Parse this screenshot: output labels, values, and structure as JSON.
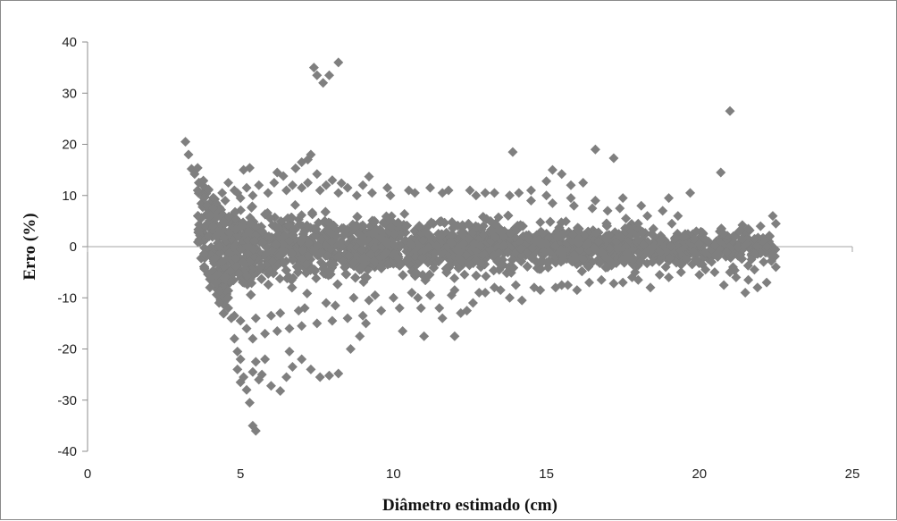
{
  "chart_data": {
    "type": "scatter",
    "title": "",
    "xlabel": "Diâmetro estimado (cm)",
    "ylabel": "Erro (%)",
    "xlim": [
      0,
      25
    ],
    "ylim": [
      -40,
      40
    ],
    "x_ticks": [
      0,
      5,
      10,
      15,
      20,
      25
    ],
    "y_ticks": [
      40,
      30,
      20,
      10,
      0,
      -10,
      -20,
      -30,
      -40
    ],
    "grid": false,
    "legend": "none",
    "marker": "diamond",
    "colors": {
      "marker": "#7f7f7f",
      "axis": "#8c8c8c",
      "zero_line": "#a6a6a6"
    },
    "series": [
      {
        "values": [
          [
            3.2,
            20.5
          ],
          [
            3.3,
            18.0
          ],
          [
            3.4,
            15.2
          ],
          [
            3.5,
            14.2
          ],
          [
            3.6,
            15.4
          ],
          [
            3.7,
            12.5
          ],
          [
            3.6,
            11.0
          ],
          [
            3.8,
            9.5
          ],
          [
            3.9,
            8.0
          ],
          [
            4.0,
            6.0
          ],
          [
            4.1,
            4.0
          ],
          [
            4.2,
            2.0
          ],
          [
            4.3,
            0.0
          ],
          [
            4.4,
            -3.0
          ],
          [
            4.5,
            -6.0
          ],
          [
            4.6,
            -10.0
          ],
          [
            4.7,
            -14.0
          ],
          [
            4.8,
            -18.0
          ],
          [
            4.9,
            -20.5
          ],
          [
            4.6,
            12.5
          ],
          [
            4.9,
            10.5
          ],
          [
            5.1,
            15.0
          ],
          [
            5.3,
            15.4
          ],
          [
            5.0,
            -22.0
          ],
          [
            4.9,
            -24.0
          ],
          [
            5.1,
            -25.5
          ],
          [
            5.0,
            -26.5
          ],
          [
            5.2,
            -28.0
          ],
          [
            5.5,
            -22.5
          ],
          [
            5.4,
            -24.5
          ],
          [
            5.6,
            -26.0
          ],
          [
            5.7,
            -25.0
          ],
          [
            6.0,
            -27.2
          ],
          [
            6.3,
            -28.2
          ],
          [
            6.5,
            -25.5
          ],
          [
            6.7,
            -23.5
          ],
          [
            5.8,
            -22.0
          ],
          [
            5.3,
            -30.5
          ],
          [
            5.4,
            -35.0
          ],
          [
            5.5,
            -36.0
          ],
          [
            6.6,
            -20.5
          ],
          [
            7.0,
            -22.0
          ],
          [
            7.3,
            -24.0
          ],
          [
            7.6,
            -25.5
          ],
          [
            7.9,
            -25.2
          ],
          [
            8.2,
            -24.8
          ],
          [
            8.6,
            -20.0
          ],
          [
            8.9,
            -17.5
          ],
          [
            9.1,
            -15.0
          ],
          [
            7.4,
            35.0
          ],
          [
            7.5,
            33.5
          ],
          [
            7.7,
            32.0
          ],
          [
            7.9,
            33.5
          ],
          [
            8.2,
            36.0
          ],
          [
            6.2,
            14.5
          ],
          [
            6.4,
            13.8
          ],
          [
            6.8,
            15.3
          ],
          [
            7.0,
            16.5
          ],
          [
            7.2,
            17.0
          ],
          [
            7.3,
            18.0
          ],
          [
            7.5,
            14.2
          ],
          [
            8.0,
            13.0
          ],
          [
            8.3,
            12.4
          ],
          [
            9.2,
            13.7
          ],
          [
            11.0,
            -17.5
          ],
          [
            10.3,
            -16.5
          ],
          [
            12.0,
            -17.5
          ],
          [
            12.4,
            -12.5
          ],
          [
            11.6,
            -14.0
          ],
          [
            13.9,
            18.5
          ],
          [
            16.6,
            19.0
          ],
          [
            17.2,
            17.3
          ],
          [
            15.2,
            15.0
          ],
          [
            15.5,
            14.2
          ],
          [
            15.0,
            12.8
          ],
          [
            15.8,
            12.0
          ],
          [
            14.5,
            11.0
          ],
          [
            16.2,
            12.5
          ],
          [
            17.5,
            9.5
          ],
          [
            18.1,
            8.0
          ],
          [
            19.0,
            9.5
          ],
          [
            19.7,
            10.5
          ],
          [
            18.8,
            7.0
          ],
          [
            19.3,
            6.0
          ],
          [
            19.5,
            2.0
          ],
          [
            19.8,
            -1.0
          ],
          [
            20.1,
            -3.5
          ],
          [
            20.5,
            -5.0
          ],
          [
            20.8,
            -7.5
          ],
          [
            20.7,
            14.5
          ],
          [
            21.0,
            26.5
          ],
          [
            21.3,
            3.0
          ],
          [
            21.5,
            0.5
          ],
          [
            21.7,
            -2.5
          ],
          [
            21.6,
            -6.5
          ],
          [
            21.5,
            -9.0
          ],
          [
            21.9,
            -8.0
          ],
          [
            22.0,
            4.0
          ],
          [
            22.3,
            2.0
          ],
          [
            22.4,
            6.0
          ],
          [
            22.5,
            4.5
          ],
          [
            22.4,
            -1.5
          ],
          [
            22.5,
            -4.0
          ],
          [
            22.2,
            -7.0
          ],
          [
            21.8,
            1.5
          ],
          [
            20.3,
            1.0
          ],
          [
            20.0,
            -5.5
          ],
          [
            19.0,
            -6.0
          ],
          [
            18.4,
            -8.0
          ],
          [
            18.0,
            -6.5
          ],
          [
            17.5,
            -7.0
          ],
          [
            17.2,
            -7.2
          ],
          [
            16.0,
            -8.5
          ],
          [
            15.3,
            -8.0
          ],
          [
            14.6,
            -8.0
          ],
          [
            13.8,
            -10.0
          ],
          [
            14.2,
            -10.5
          ],
          [
            13.0,
            -9.0
          ],
          [
            12.6,
            -11.0
          ],
          [
            12.2,
            -13.0
          ],
          [
            11.5,
            -12.0
          ],
          [
            10.9,
            -12.0
          ],
          [
            10.2,
            -12.0
          ],
          [
            9.6,
            -12.5
          ],
          [
            9.0,
            -13.5
          ],
          [
            8.5,
            -14.0
          ],
          [
            8.0,
            -14.5
          ],
          [
            7.5,
            -15.0
          ],
          [
            7.0,
            -15.5
          ],
          [
            6.6,
            -16.0
          ],
          [
            6.2,
            -16.5
          ],
          [
            5.8,
            -17.0
          ],
          [
            5.4,
            -18.0
          ],
          [
            5.2,
            -16.0
          ],
          [
            6.0,
            -13.5
          ],
          [
            6.9,
            -12.5
          ],
          [
            7.8,
            -11.0
          ],
          [
            8.7,
            -10.0
          ],
          [
            9.4,
            -9.5
          ],
          [
            10.6,
            -9.0
          ],
          [
            11.2,
            -9.5
          ],
          [
            12.0,
            -8.5
          ],
          [
            13.3,
            -8.0
          ],
          [
            14.0,
            -7.5
          ],
          [
            15.5,
            -7.5
          ],
          [
            16.4,
            -7.0
          ],
          [
            17.8,
            -6.0
          ],
          [
            18.7,
            -5.5
          ],
          [
            19.4,
            -5.0
          ],
          [
            20.2,
            -4.5
          ],
          [
            21.1,
            -4.0
          ],
          [
            21.2,
            -6.0
          ],
          [
            22.1,
            -3.0
          ],
          [
            21.4,
            1.5
          ],
          [
            20.9,
            -1.0
          ],
          [
            20.6,
            -2.0
          ],
          [
            20.0,
            0.5
          ],
          [
            19.2,
            1.5
          ],
          [
            18.5,
            3.5
          ],
          [
            18.0,
            4.5
          ],
          [
            17.6,
            5.5
          ],
          [
            17.0,
            7.0
          ],
          [
            16.5,
            7.5
          ],
          [
            15.9,
            8.0
          ],
          [
            15.2,
            8.5
          ],
          [
            14.5,
            9.0
          ],
          [
            13.8,
            10.0
          ],
          [
            13.0,
            10.5
          ],
          [
            12.5,
            11.0
          ],
          [
            11.8,
            11.0
          ],
          [
            11.2,
            11.5
          ],
          [
            10.5,
            11.0
          ],
          [
            9.8,
            11.5
          ],
          [
            9.0,
            12.0
          ],
          [
            8.5,
            11.5
          ],
          [
            7.8,
            12.0
          ],
          [
            7.2,
            12.5
          ],
          [
            6.7,
            12.0
          ],
          [
            6.1,
            12.5
          ],
          [
            5.6,
            12.0
          ],
          [
            5.2,
            11.5
          ],
          [
            4.8,
            11.0
          ],
          [
            4.4,
            10.5
          ],
          [
            4.2,
            8.5
          ],
          [
            4.0,
            -8.0
          ],
          [
            4.3,
            -11.0
          ],
          [
            4.6,
            -12.0
          ],
          [
            4.8,
            -13.5
          ],
          [
            5.0,
            -14.5
          ],
          [
            5.5,
            -14.0
          ],
          [
            6.3,
            -13.0
          ],
          [
            7.1,
            -12.0
          ],
          [
            8.1,
            -11.5
          ],
          [
            9.2,
            -10.5
          ],
          [
            10.0,
            -10.0
          ],
          [
            10.8,
            -10.0
          ],
          [
            11.9,
            -9.5
          ],
          [
            12.8,
            -9.0
          ],
          [
            13.5,
            -8.5
          ],
          [
            14.8,
            -8.5
          ],
          [
            15.7,
            -7.5
          ],
          [
            16.8,
            -6.5
          ],
          [
            17.9,
            -5.0
          ],
          [
            18.9,
            -4.0
          ],
          [
            19.6,
            -2.5
          ],
          [
            20.4,
            -3.0
          ],
          [
            21.0,
            -5.0
          ],
          [
            21.8,
            -4.5
          ],
          [
            22.2,
            0.0
          ],
          [
            21.6,
            3.5
          ],
          [
            20.8,
            2.5
          ],
          [
            19.9,
            3.0
          ],
          [
            19.1,
            4.5
          ],
          [
            18.3,
            6.0
          ],
          [
            17.4,
            7.5
          ],
          [
            16.6,
            9.0
          ],
          [
            15.8,
            9.5
          ],
          [
            15.0,
            10.0
          ],
          [
            14.1,
            10.5
          ],
          [
            13.3,
            10.5
          ],
          [
            12.7,
            10.0
          ],
          [
            11.6,
            10.5
          ],
          [
            10.7,
            10.5
          ],
          [
            9.9,
            10.0
          ],
          [
            9.3,
            10.5
          ],
          [
            8.8,
            10.0
          ],
          [
            8.2,
            10.5
          ],
          [
            7.6,
            11.0
          ],
          [
            7.0,
            11.5
          ],
          [
            6.5,
            11.0
          ],
          [
            5.9,
            10.5
          ],
          [
            5.4,
            10.0
          ],
          [
            5.0,
            9.5
          ],
          [
            4.5,
            9.0
          ],
          [
            4.1,
            7.5
          ]
        ]
      }
    ]
  }
}
